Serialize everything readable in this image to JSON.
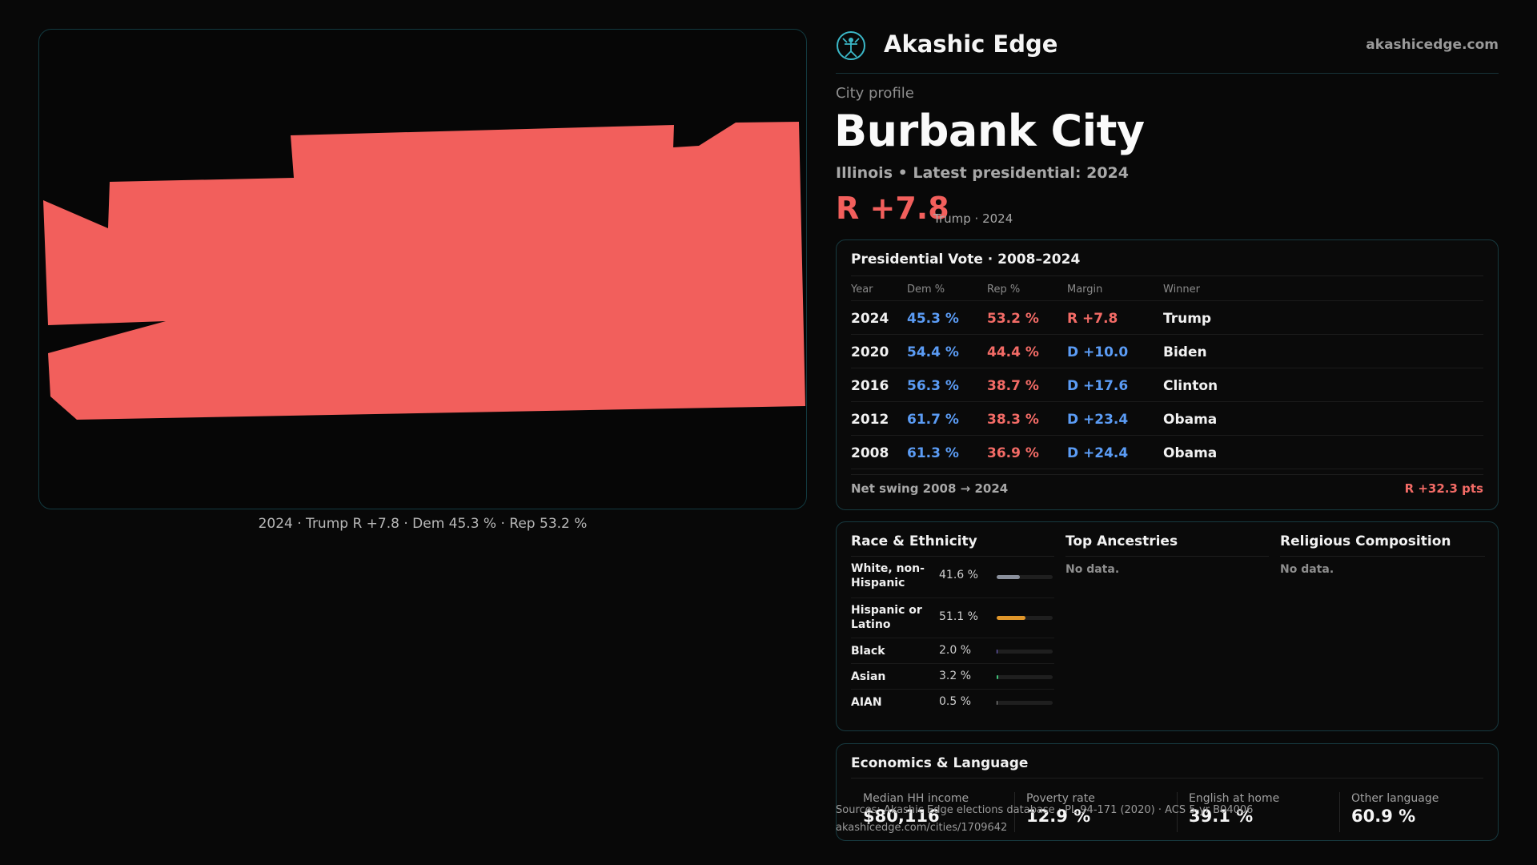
{
  "brand": {
    "name": "Akashic Edge",
    "url": "akashicedge.com",
    "logo_icon": "akashic-logo-icon",
    "accent": "#3bb8c8"
  },
  "map": {
    "fill_color": "#f25f5c",
    "caption": "2024 · Trump  R +7.8 · Dem 45.3 % · Rep 53.2 %"
  },
  "profile": {
    "kicker": "City profile",
    "title": "Burbank City",
    "subtitle": "Illinois • Latest presidential: 2024",
    "margin": "R +7.8",
    "margin_note": "Trump · 2024"
  },
  "vote": {
    "title": "Presidential Vote · 2008–2024",
    "headers": {
      "year": "Year",
      "dem": "Dem %",
      "rep": "Rep %",
      "margin": "Margin",
      "winner": "Winner"
    },
    "rows": [
      {
        "year": "2024",
        "dem": "45.3 %",
        "rep": "53.2 %",
        "margin": "R +7.8",
        "party": "r",
        "winner": "Trump"
      },
      {
        "year": "2020",
        "dem": "54.4 %",
        "rep": "44.4 %",
        "margin": "D +10.0",
        "party": "d",
        "winner": "Biden"
      },
      {
        "year": "2016",
        "dem": "56.3 %",
        "rep": "38.7 %",
        "margin": "D +17.6",
        "party": "d",
        "winner": "Clinton"
      },
      {
        "year": "2012",
        "dem": "61.7 %",
        "rep": "38.3 %",
        "margin": "D +23.4",
        "party": "d",
        "winner": "Obama"
      },
      {
        "year": "2008",
        "dem": "61.3 %",
        "rep": "36.9 %",
        "margin": "D +24.4",
        "party": "d",
        "winner": "Obama"
      }
    ],
    "swing_label": "Net swing 2008 → 2024",
    "swing_value": "R +32.3 pts",
    "dem_color": "#5b9cf5",
    "rep_color": "#f36b66"
  },
  "demographics": {
    "race": {
      "title": "Race & Ethnicity",
      "rows": [
        {
          "label": "White, non-Hispanic",
          "value": "41.6 %",
          "fraction": 0.416,
          "color": "#8a909c"
        },
        {
          "label": "Hispanic or Latino",
          "value": "51.1 %",
          "fraction": 0.511,
          "color": "#e0962a"
        },
        {
          "label": "Black",
          "value": "2.0 %",
          "fraction": 0.02,
          "color": "#7a6ad8"
        },
        {
          "label": "Asian",
          "value": "3.2 %",
          "fraction": 0.032,
          "color": "#3fc27a"
        },
        {
          "label": "AIAN",
          "value": "0.5 %",
          "fraction": 0.005,
          "color": "#9a9a9a"
        }
      ]
    },
    "ancestries": {
      "title": "Top Ancestries",
      "empty": "No data."
    },
    "religion": {
      "title": "Religious Composition",
      "empty": "No data."
    }
  },
  "economics": {
    "title": "Economics & Language",
    "cells": [
      {
        "label": "Median HH income",
        "value": "$80,116"
      },
      {
        "label": "Poverty rate",
        "value": "12.9 %"
      },
      {
        "label": "English at home",
        "value": "39.1 %"
      },
      {
        "label": "Other language",
        "value": "60.9 %"
      }
    ]
  },
  "footer": {
    "source": "Sources: Akashic Edge elections database · PL 94-171 (2020) · ACS 5-yr B04006",
    "url": "akashicedge.com/cities/1709642"
  }
}
